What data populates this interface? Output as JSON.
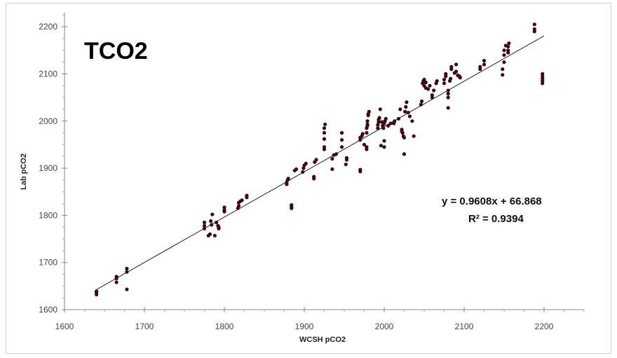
{
  "chart_data": {
    "type": "scatter",
    "title": "TCO2",
    "xlabel": "WCSH pCO2",
    "ylabel": "Lab pCO2",
    "xlim": [
      1600,
      2250
    ],
    "ylim": [
      1600,
      2230
    ],
    "xticks": [
      1600,
      1700,
      1800,
      1900,
      2000,
      2100,
      2200
    ],
    "yticks": [
      1600,
      1700,
      1800,
      1900,
      2000,
      2100,
      2200
    ],
    "trendline": {
      "slope": 0.9608,
      "intercept": 66.868,
      "x_range": [
        1640,
        2200
      ]
    },
    "equation_label": "y = 0.9608x + 66.868",
    "r2_label": "R² = 0.9394",
    "marker_color": "#3a0a12",
    "points": [
      [
        1640,
        1632
      ],
      [
        1640,
        1636
      ],
      [
        1640,
        1639
      ],
      [
        1665,
        1658
      ],
      [
        1665,
        1666
      ],
      [
        1665,
        1670
      ],
      [
        1678,
        1643
      ],
      [
        1678,
        1680
      ],
      [
        1678,
        1687
      ],
      [
        1775,
        1772
      ],
      [
        1775,
        1778
      ],
      [
        1775,
        1785
      ],
      [
        1780,
        1757
      ],
      [
        1782,
        1760
      ],
      [
        1783,
        1788
      ],
      [
        1784,
        1780
      ],
      [
        1785,
        1802
      ],
      [
        1788,
        1757
      ],
      [
        1790,
        1785
      ],
      [
        1792,
        1778
      ],
      [
        1793,
        1772
      ],
      [
        1793,
        1775
      ],
      [
        1800,
        1808
      ],
      [
        1800,
        1812
      ],
      [
        1800,
        1817
      ],
      [
        1817,
        1815
      ],
      [
        1818,
        1820
      ],
      [
        1818,
        1827
      ],
      [
        1820,
        1830
      ],
      [
        1822,
        1832
      ],
      [
        1828,
        1838
      ],
      [
        1828,
        1842
      ],
      [
        1878,
        1866
      ],
      [
        1878,
        1870
      ],
      [
        1879,
        1875
      ],
      [
        1880,
        1878
      ],
      [
        1884,
        1815
      ],
      [
        1884,
        1818
      ],
      [
        1884,
        1822
      ],
      [
        1888,
        1895
      ],
      [
        1890,
        1898
      ],
      [
        1898,
        1892
      ],
      [
        1899,
        1900
      ],
      [
        1900,
        1906
      ],
      [
        1902,
        1910
      ],
      [
        1912,
        1878
      ],
      [
        1912,
        1882
      ],
      [
        1913,
        1913
      ],
      [
        1915,
        1918
      ],
      [
        1925,
        1940
      ],
      [
        1925,
        1945
      ],
      [
        1925,
        1962
      ],
      [
        1925,
        1975
      ],
      [
        1925,
        1985
      ],
      [
        1926,
        1993
      ],
      [
        1935,
        1898
      ],
      [
        1935,
        1920
      ],
      [
        1937,
        1928
      ],
      [
        1940,
        1930
      ],
      [
        1947,
        1945
      ],
      [
        1947,
        1960
      ],
      [
        1947,
        1975
      ],
      [
        1952,
        1908
      ],
      [
        1953,
        1918
      ],
      [
        1953,
        1922
      ],
      [
        1970,
        1893
      ],
      [
        1970,
        1897
      ],
      [
        1970,
        1960
      ],
      [
        1970,
        1965
      ],
      [
        1972,
        1968
      ],
      [
        1973,
        1973
      ],
      [
        1975,
        1950
      ],
      [
        1978,
        1940
      ],
      [
        1978,
        1945
      ],
      [
        1978,
        1975
      ],
      [
        1978,
        1985
      ],
      [
        1979,
        1990
      ],
      [
        1979,
        1993
      ],
      [
        1979,
        2000
      ],
      [
        1980,
        2012
      ],
      [
        1980,
        2015
      ],
      [
        1981,
        2020
      ],
      [
        1992,
        1985
      ],
      [
        1992,
        1992
      ],
      [
        1993,
        1998
      ],
      [
        1993,
        2003
      ],
      [
        1994,
        2007
      ],
      [
        1995,
        2025
      ],
      [
        1996,
        1948
      ],
      [
        1997,
        1998
      ],
      [
        1998,
        1990
      ],
      [
        1999,
        1985
      ],
      [
        2000,
        1945
      ],
      [
        2000,
        1958
      ],
      [
        2000,
        1995
      ],
      [
        2001,
        2000
      ],
      [
        2002,
        2005
      ],
      [
        2005,
        1990
      ],
      [
        2008,
        1995
      ],
      [
        2012,
        1995
      ],
      [
        2013,
        2000
      ],
      [
        2018,
        2005
      ],
      [
        2020,
        2025
      ],
      [
        2022,
        1982
      ],
      [
        2022,
        1978
      ],
      [
        2023,
        1975
      ],
      [
        2024,
        1968
      ],
      [
        2025,
        1965
      ],
      [
        2025,
        1930
      ],
      [
        2026,
        2020
      ],
      [
        2027,
        2030
      ],
      [
        2028,
        2040
      ],
      [
        2030,
        2018
      ],
      [
        2032,
        2010
      ],
      [
        2035,
        2000
      ],
      [
        2037,
        1968
      ],
      [
        2046,
        2035
      ],
      [
        2047,
        2042
      ],
      [
        2048,
        2080
      ],
      [
        2049,
        2085
      ],
      [
        2050,
        2088
      ],
      [
        2050,
        2075
      ],
      [
        2052,
        2070
      ],
      [
        2052,
        2082
      ],
      [
        2055,
        2068
      ],
      [
        2057,
        2075
      ],
      [
        2060,
        2050
      ],
      [
        2060,
        2055
      ],
      [
        2062,
        2065
      ],
      [
        2065,
        2080
      ],
      [
        2066,
        2085
      ],
      [
        2075,
        2088
      ],
      [
        2075,
        2080
      ],
      [
        2077,
        2095
      ],
      [
        2077,
        2100
      ],
      [
        2080,
        2028
      ],
      [
        2080,
        2050
      ],
      [
        2080,
        2058
      ],
      [
        2080,
        2065
      ],
      [
        2082,
        2085
      ],
      [
        2083,
        2090
      ],
      [
        2084,
        2110
      ],
      [
        2084,
        2115
      ],
      [
        2088,
        2102
      ],
      [
        2090,
        2105
      ],
      [
        2090,
        2120
      ],
      [
        2092,
        2097
      ],
      [
        2094,
        2095
      ],
      [
        2095,
        2092
      ],
      [
        2120,
        2110
      ],
      [
        2120,
        2115
      ],
      [
        2125,
        2120
      ],
      [
        2125,
        2128
      ],
      [
        2148,
        2098
      ],
      [
        2148,
        2110
      ],
      [
        2150,
        2125
      ],
      [
        2150,
        2140
      ],
      [
        2150,
        2150
      ],
      [
        2152,
        2160
      ],
      [
        2155,
        2145
      ],
      [
        2155,
        2150
      ],
      [
        2155,
        2158
      ],
      [
        2156,
        2165
      ],
      [
        2188,
        2190
      ],
      [
        2188,
        2195
      ],
      [
        2188,
        2205
      ],
      [
        2198,
        2080
      ],
      [
        2198,
        2085
      ],
      [
        2198,
        2090
      ],
      [
        2198,
        2095
      ],
      [
        2198,
        2100
      ]
    ]
  }
}
